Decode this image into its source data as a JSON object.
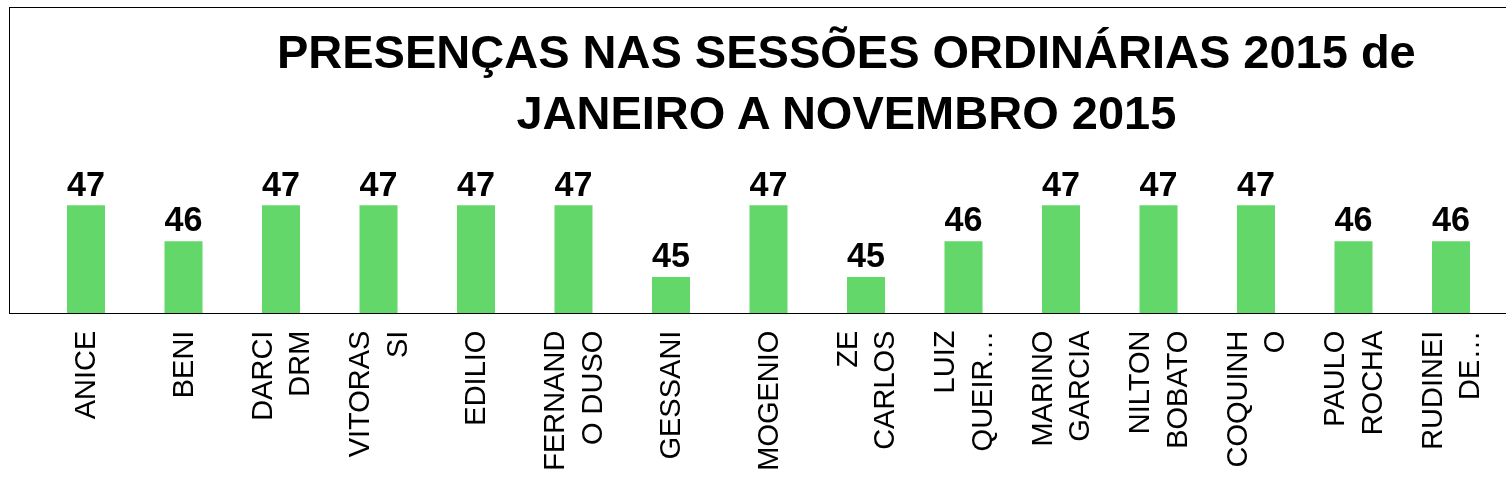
{
  "chart_data": {
    "type": "bar",
    "title": "PRESENÇAS NAS SESSÕES ORDINÁRIAS 2015 de JANEIRO A NOVEMBRO 2015",
    "categories": [
      "ANICE",
      "BENI",
      "DARCI DRM",
      "VITORASSI",
      "EDILIO",
      "FERNANDO DUSO",
      "GESSANI",
      "MOGENIO",
      "ZE CARLOS",
      "LUIZ QUEIR…",
      "MARINO GARCIA",
      "NILTON BOBATO",
      "COQUINHO",
      "PAULO ROCHA",
      "RUDINEI DE…"
    ],
    "values": [
      47,
      46,
      47,
      47,
      47,
      47,
      45,
      47,
      45,
      46,
      47,
      47,
      47,
      46,
      46
    ],
    "color": "#64d76a",
    "ylim": [
      44,
      52.5
    ],
    "data_labels": true,
    "tick_labels": "x"
  }
}
